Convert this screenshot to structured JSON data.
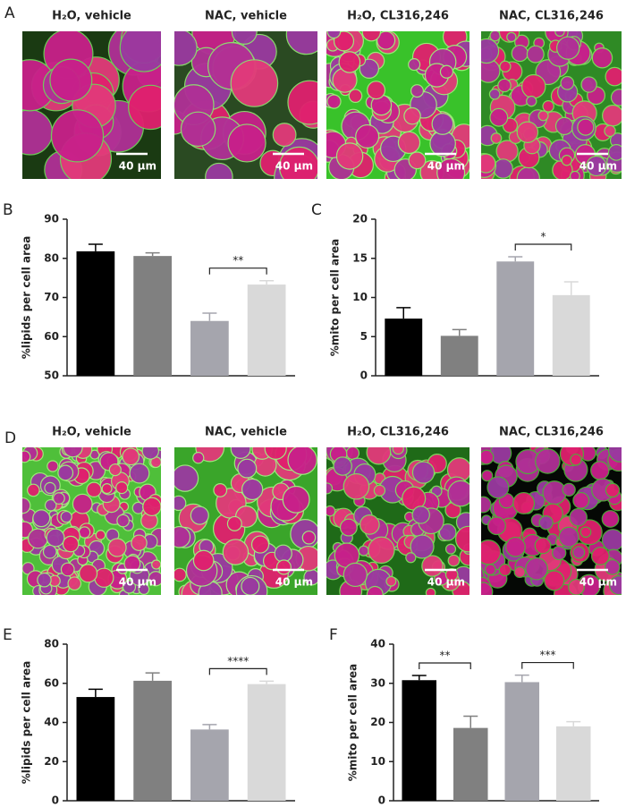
{
  "panels": [
    {
      "label": "A",
      "images": [
        {
          "title": "H₂O, vehicle",
          "scale_bar": "40 µm"
        },
        {
          "title": "NAC, vehicle",
          "scale_bar": "40 µm"
        },
        {
          "title": "H₂O, CL316,246",
          "scale_bar": "40 µm"
        },
        {
          "title": "NAC, CL316,246",
          "scale_bar": "40 µm"
        }
      ]
    },
    {
      "label": "D",
      "images": [
        {
          "title": "H₂O, vehicle",
          "scale_bar": "40 µm"
        },
        {
          "title": "NAC, vehicle",
          "scale_bar": "40 µm"
        },
        {
          "title": "H₂O, CL316,246",
          "scale_bar": "40 µm"
        },
        {
          "title": "NAC, CL316,246",
          "scale_bar": "40 µm"
        }
      ]
    }
  ],
  "chart_data": [
    {
      "type": "bar",
      "label": "B",
      "ylabel": "%lipids per cell area",
      "categories": [
        null,
        null,
        null,
        null
      ],
      "values": [
        81.8,
        80.6,
        64,
        73.3
      ],
      "errors": [
        1.8,
        0.8,
        2,
        1
      ],
      "colors": [
        "#000000",
        "#808080",
        "#a5a5ad",
        "#d9d9d9"
      ],
      "ylim": [
        50,
        90
      ],
      "yticks": [
        50,
        60,
        70,
        80,
        90
      ],
      "annotations": [
        {
          "text": "**",
          "bars": [
            2,
            3
          ]
        }
      ]
    },
    {
      "type": "bar",
      "label": "C",
      "ylabel": "%mito per cell area",
      "categories": [
        null,
        null,
        null,
        null
      ],
      "values": [
        7.3,
        5.1,
        14.6,
        10.3
      ],
      "errors": [
        1.4,
        0.8,
        0.6,
        1.7
      ],
      "colors": [
        "#000000",
        "#808080",
        "#a5a5ad",
        "#d9d9d9"
      ],
      "ylim": [
        0,
        20
      ],
      "yticks": [
        0,
        5,
        10,
        15,
        20
      ],
      "annotations": [
        {
          "text": "*",
          "bars": [
            2,
            3
          ]
        }
      ]
    },
    {
      "type": "bar",
      "label": "E",
      "ylabel": "%lipids per cell area",
      "categories": [
        null,
        null,
        null,
        null
      ],
      "values": [
        53,
        61.3,
        36.4,
        59.6
      ],
      "errors": [
        4,
        4,
        2.5,
        1.5
      ],
      "colors": [
        "#000000",
        "#808080",
        "#a5a5ad",
        "#d9d9d9"
      ],
      "ylim": [
        0,
        80
      ],
      "yticks": [
        0,
        20,
        40,
        60,
        80
      ],
      "annotations": [
        {
          "text": "****",
          "bars": [
            2,
            3
          ]
        }
      ]
    },
    {
      "type": "bar",
      "label": "F",
      "ylabel": "%mito per cell area",
      "categories": [
        null,
        null,
        null,
        null
      ],
      "values": [
        30.8,
        18.6,
        30.3,
        19
      ],
      "errors": [
        1.2,
        3,
        1.8,
        1.2
      ],
      "colors": [
        "#000000",
        "#808080",
        "#a5a5ad",
        "#d9d9d9"
      ],
      "ylim": [
        0,
        40
      ],
      "yticks": [
        0,
        10,
        20,
        30,
        40
      ],
      "annotations": [
        {
          "text": "**",
          "bars": [
            0,
            1
          ]
        },
        {
          "text": "***",
          "bars": [
            2,
            3
          ]
        }
      ]
    }
  ]
}
